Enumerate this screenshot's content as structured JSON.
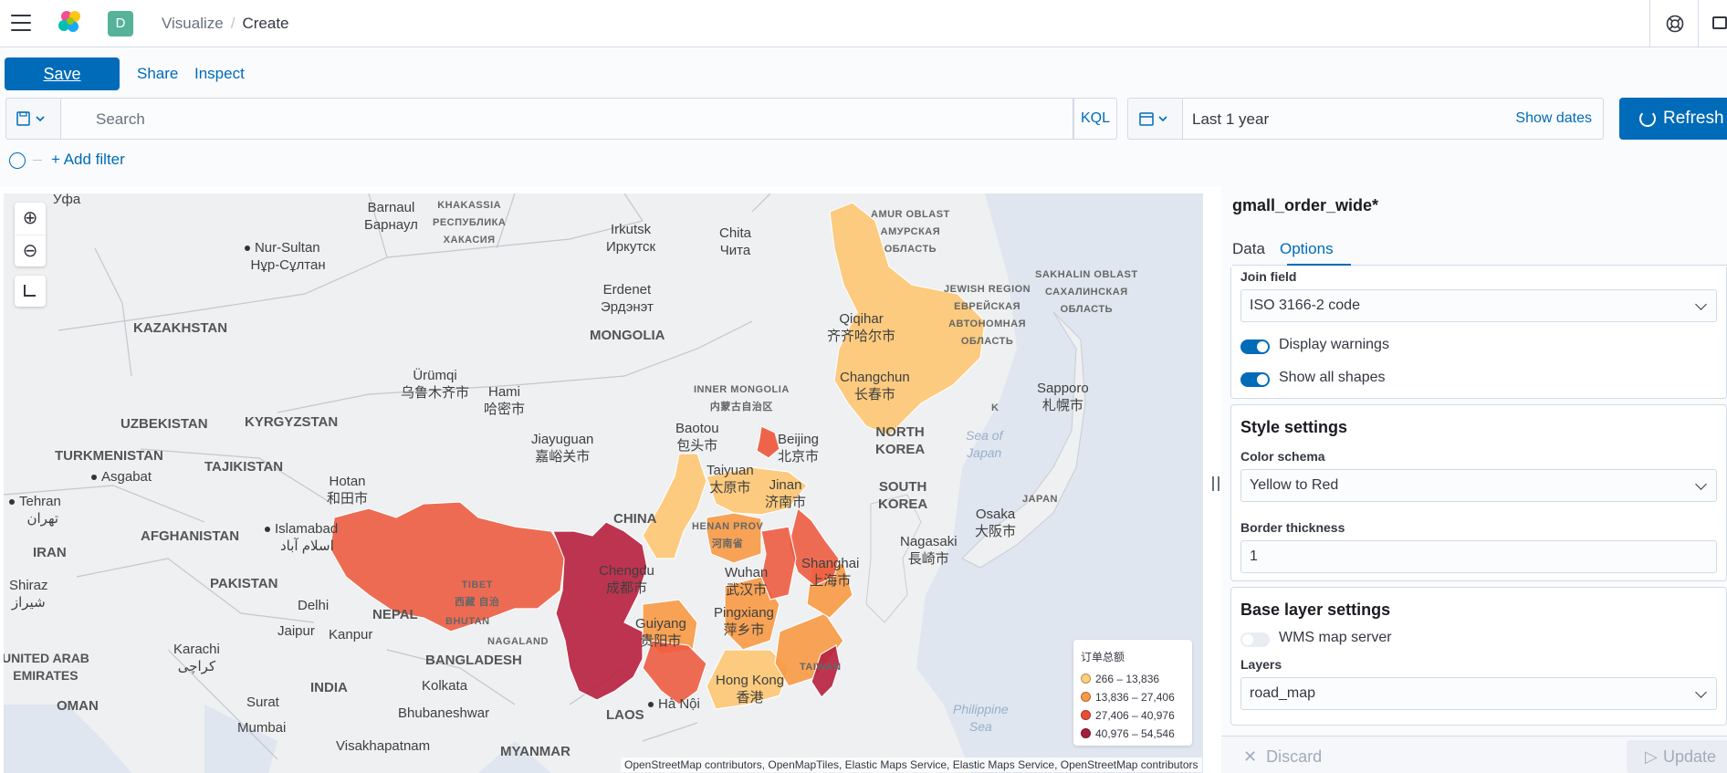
{
  "header": {
    "breadcrumb_parent": "Visualize",
    "breadcrumb_separator": "/",
    "breadcrumb_current": "Create",
    "space_initial": "D",
    "icons": [
      "menu-icon",
      "elastic-logo-icon",
      "help-icon",
      "mail-icon"
    ]
  },
  "toolbar": {
    "save_label": "Save",
    "share_label": "Share",
    "inspect_label": "Inspect"
  },
  "query": {
    "search_placeholder": "Search",
    "language": "KQL",
    "time_range": "Last 1 year",
    "show_dates_label": "Show dates",
    "refresh_label": "Refresh"
  },
  "filters": {
    "add_filter_label": "+ Add filter"
  },
  "map": {
    "labels": {
      "ufa": "Уфа",
      "barnaul": "Barnaul",
      "barnaul_ru": "Барнаул",
      "khakassia": "KHAKASSIA",
      "khakassia_ru": "РЕСПУБЛИКА",
      "khakassia_ru2": "ХАКАСИЯ",
      "irkutsk": "Irkutsk",
      "irkutsk_ru": "Иркутск",
      "chita": "Chita",
      "chita_ru": "Чита",
      "amur": "AMUR OBLAST",
      "amur_ru": "АМУРСКАЯ",
      "amur_ru2": "ОБЛАСТЬ",
      "nur_sultan": "Nur-Sultan",
      "nur_sultan_kz": "Нұр-Сұлтан",
      "kazakhstan": "KAZAKHSTAN",
      "erdenet": "Erdenet",
      "erdenet_mn": "Эрдэнэт",
      "mongolia": "MONGOLIA",
      "jewish_region": "JEWISH REGION",
      "jewish_ru": "ЕВРЕЙСКАЯ",
      "jewish_ru2": "АВТОНОМНАЯ",
      "jewish_ru3": "ОБЛАСТЬ",
      "sakhalin": "SAKHALIN OBLAST",
      "sakhalin_ru": "САХАЛИНСКАЯ",
      "sakhalin_ru2": "ОБЛАСТЬ",
      "qiqihar": "Qiqihar",
      "qiqihar_zh": "齐齐哈尔市",
      "urumqi": "Ürümqi",
      "urumqi_zh": "乌鲁木齐市",
      "hami": "Hami",
      "hami_zh": "哈密市",
      "inner_mongolia": "INNER MONGOLIA",
      "inner_mongolia_zh": "内蒙古自治区",
      "changchun": "Changchun",
      "changchun_zh": "长春市",
      "sapporo": "Sapporo",
      "sapporo_ja": "札幌市",
      "uzbekistan": "UZBEKISTAN",
      "kyrgyzstan": "KYRGYZSTAN",
      "turkmenistan": "TURKMENISTAN",
      "ashgabat": "Asgabat",
      "tajikistan": "TAJIKISTAN",
      "jiayuguan": "Jiayuguan",
      "jiayuguan_zh": "嘉峪关市",
      "baotou": "Baotou",
      "baotou_zh": "包头市",
      "beijing": "Beijing",
      "beijing_zh": "北京市",
      "north_korea": "NORTH",
      "north_korea2": "KOREA",
      "sea_japan": "Sea of",
      "sea_japan2": "Japan",
      "k_label": "K",
      "tehran": "Tehran",
      "tehran_fa": "تهران",
      "hotan": "Hotan",
      "hotan_zh": "和田市",
      "taiyuan": "Taiyuan",
      "taiyuan_zh": "太原市",
      "jinan": "Jinan",
      "jinan_zh": "济南市",
      "south_korea": "SOUTH",
      "south_korea2": "KOREA",
      "japan": "JAPAN",
      "afghanistan": "AFGHANISTAN",
      "islamabad": "Islamabad",
      "islamabad_ur": "اسلام آباد",
      "iran": "IRAN",
      "china": "CHINA",
      "henan": "HENAN PROV",
      "henan_zh": "河南省",
      "osaka": "Osaka",
      "osaka_ja": "大阪市",
      "nagasaki": "Nagasaki",
      "nagasaki_ja": "長崎市",
      "shiraz": "Shiraz",
      "shiraz_fa": "شیراز",
      "pakistan": "PAKISTAN",
      "tibet": "TIBET",
      "tibet_zh": "西藏 自治",
      "chengdu": "Chengdu",
      "chengdu_zh": "成都市",
      "wuhan": "Wuhan",
      "wuhan_zh": "武汉市",
      "shanghai": "Shanghai",
      "shanghai_zh": "上海市",
      "delhi": "Delhi",
      "nepal": "NEPAL",
      "bhutan": "BHUTAN",
      "jaipur": "Jaipur",
      "kanpur": "Kanpur",
      "guiyang": "Guiyang",
      "guiyang_zh": "贵阳市",
      "pingxiang": "Pingxiang",
      "pingxiang_zh": "萍乡市",
      "nagaland": "NAGALAND",
      "karachi": "Karachi",
      "karachi_ur": "کراچی",
      "uae": "UNITED ARAB",
      "uae2": "EMIRATES",
      "bangladesh": "BANGLADESH",
      "taiwan": "TAIWAN",
      "india": "INDIA",
      "kolkata": "Kolkata",
      "hong_kong": "Hong Kong",
      "hong_kong_zh": "香港",
      "oman": "OMAN",
      "surat": "Surat",
      "laos": "LAOS",
      "hanoi": "Hà Nội",
      "philippine_sea": "Philippine",
      "philippine_sea2": "Sea",
      "mumbai": "Mumbai",
      "bhubaneswar": "Bhubaneshwar",
      "visakhapatnam": "Visakhapatnam",
      "myanmar": "MYANMAR"
    },
    "legend": {
      "title": "订单总额",
      "items": [
        {
          "label": "266 – 13,836",
          "color": "#fecf7a"
        },
        {
          "label": "13,836 – 27,406",
          "color": "#f99a45"
        },
        {
          "label": "27,406 – 40,976",
          "color": "#ea4d37"
        },
        {
          "label": "40,976 – 54,546",
          "color": "#a51d3b"
        }
      ]
    },
    "attribution": "OpenStreetMap contributors, OpenMapTiles, Elastic Maps Service, Elastic Maps Service, OpenStreetMap contributors",
    "region_colors": {
      "level1": "#fec873",
      "level2": "#f99a45",
      "level3": "#ef5d42",
      "level4": "#b8203f"
    }
  },
  "panel": {
    "title": "gmall_order_wide*",
    "tabs": [
      {
        "label": "Data",
        "active": false
      },
      {
        "label": "Options",
        "active": true
      }
    ],
    "join_field_label": "Join field",
    "join_field_value": "ISO 3166-2 code",
    "display_warnings_label": "Display warnings",
    "display_warnings": true,
    "show_all_shapes_label": "Show all shapes",
    "show_all_shapes": true,
    "style_settings_title": "Style settings",
    "color_schema_label": "Color schema",
    "color_schema_value": "Yellow to Red",
    "border_thickness_label": "Border thickness",
    "border_thickness_value": "1",
    "base_layer_title": "Base layer settings",
    "wms_label": "WMS map server",
    "wms_enabled": false,
    "layers_label": "Layers",
    "layers_value": "road_map",
    "discard_label": "Discard",
    "update_label": "Update"
  },
  "colors": {
    "accent": "#006bb8",
    "space_badge": "#54b399"
  }
}
